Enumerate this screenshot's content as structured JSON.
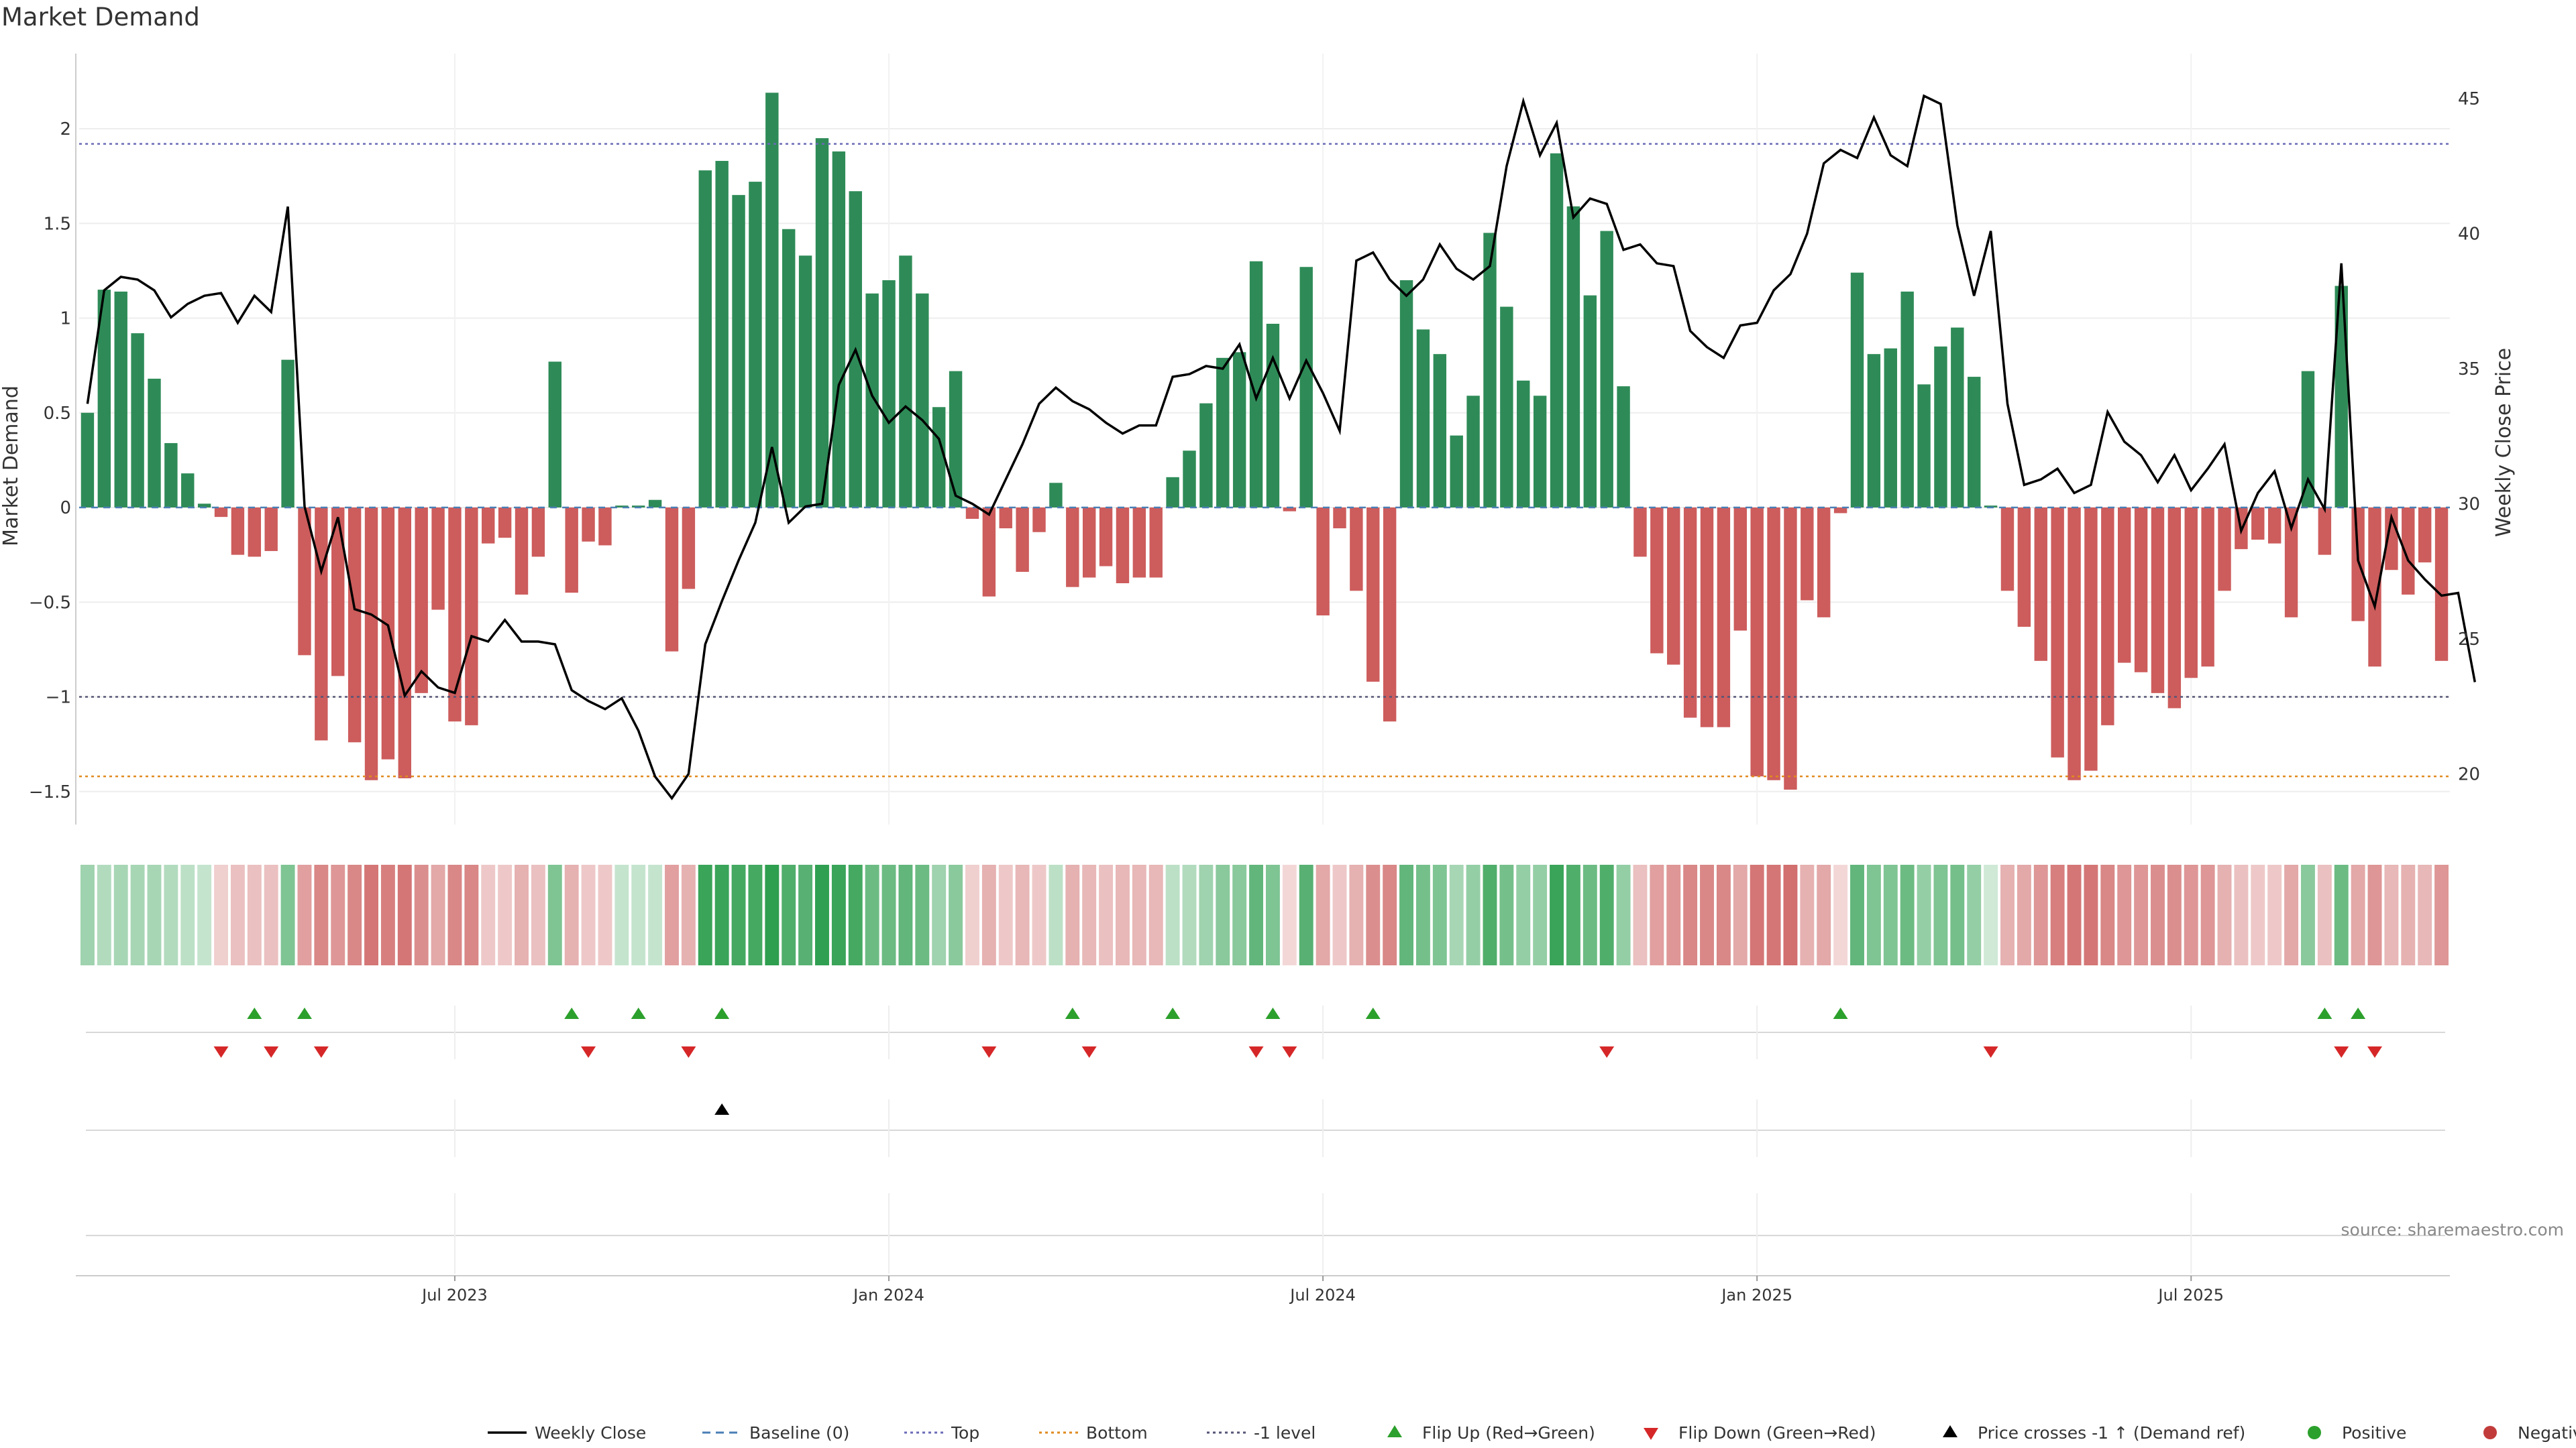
{
  "chart_data": {
    "type": "bar+line",
    "title": "Market Demand",
    "ylabel_left": "Market Demand",
    "ylabel_right": "Weekly Close Price",
    "ylim_left": [
      -1.7,
      2.4
    ],
    "ylim_right": [
      18,
      48
    ],
    "left_ticks": [
      2,
      1.5,
      1,
      0.5,
      0,
      -0.5,
      -1,
      -1.5
    ],
    "left_tick_labels": [
      "2",
      "1.5",
      "1",
      "0.5",
      "0",
      "−0.5",
      "−1",
      "−1.5"
    ],
    "right_ticks": [
      45,
      40,
      35,
      30,
      25,
      20
    ],
    "right_tick_labels": [
      "45",
      "40",
      "35",
      "30",
      "25",
      "20"
    ],
    "x_ticks": [
      {
        "label": "Jul 2023",
        "week": 22
      },
      {
        "label": "Jan 2024",
        "week": 48
      },
      {
        "label": "Jul 2024",
        "week": 74
      },
      {
        "label": "Jan 2025",
        "week": 100
      },
      {
        "label": "Jul 2025",
        "week": 126
      }
    ],
    "reference_lines": {
      "top": 1.92,
      "minus_one": -1.0,
      "bottom": -1.42,
      "baseline": 0
    },
    "demand": [
      0.5,
      1.15,
      1.14,
      0.92,
      0.68,
      0.34,
      0.18,
      0.02,
      -0.05,
      -0.25,
      -0.26,
      -0.23,
      0.78,
      -0.78,
      -1.23,
      -0.89,
      -1.24,
      -1.44,
      -1.33,
      -1.43,
      -0.98,
      -0.54,
      -1.13,
      -1.15,
      -0.19,
      -0.16,
      -0.46,
      -0.26,
      0.77,
      -0.45,
      -0.18,
      -0.2,
      0.01,
      0.01,
      0.04,
      -0.76,
      -0.43,
      1.78,
      1.83,
      1.65,
      1.72,
      2.19,
      1.47,
      1.33,
      1.95,
      1.88,
      1.67,
      1.13,
      1.2,
      1.33,
      1.13,
      0.53,
      0.72,
      -0.06,
      -0.47,
      -0.11,
      -0.34,
      -0.13,
      0.13,
      -0.42,
      -0.37,
      -0.31,
      -0.4,
      -0.37,
      -0.37,
      0.16,
      0.3,
      0.55,
      0.79,
      0.82,
      1.3,
      0.97,
      -0.02,
      1.27,
      -0.57,
      -0.11,
      -0.44,
      -0.92,
      -1.13,
      1.2,
      0.94,
      0.81,
      0.38,
      0.59,
      1.45,
      1.06,
      0.67,
      0.59,
      1.87,
      1.59,
      1.12,
      1.46,
      0.64,
      -0.26,
      -0.77,
      -0.83,
      -1.11,
      -1.16,
      -1.16,
      -0.65,
      -1.42,
      -1.44,
      -1.49,
      -0.49,
      -0.58,
      -0.03,
      1.24,
      0.81,
      0.84,
      1.14,
      0.65,
      0.85,
      0.95,
      0.69,
      0.01,
      -0.44,
      -0.63,
      -0.81,
      -1.32,
      -1.44,
      -1.39,
      -1.15,
      -0.82,
      -0.87,
      -0.98,
      -1.06,
      -0.9,
      -0.84,
      -0.44,
      -0.22,
      -0.17,
      -0.19,
      -0.58,
      0.72,
      -0.25,
      1.17,
      -0.6,
      -0.84,
      -0.33,
      -0.46,
      -0.29,
      -0.81
    ],
    "weekly_close": [
      33.7,
      37.9,
      38.4,
      38.3,
      37.9,
      36.9,
      37.4,
      37.7,
      37.8,
      36.7,
      37.7,
      37.1,
      41,
      29.9,
      27.5,
      29.5,
      26.1,
      25.9,
      25.5,
      22.9,
      23.8,
      23.2,
      23,
      25.1,
      24.9,
      25.7,
      24.9,
      24.9,
      24.8,
      23.1,
      22.7,
      22.4,
      22.8,
      21.6,
      19.9,
      19.1,
      20,
      24.8,
      26.4,
      27.9,
      29.3,
      32.1,
      29.3,
      29.9,
      30,
      34.4,
      35.7,
      34,
      33,
      33.6,
      33.1,
      32.4,
      30.3,
      30,
      29.6,
      30.9,
      32.2,
      33.7,
      34.3,
      33.8,
      33.5,
      33,
      32.6,
      32.9,
      32.9,
      34.7,
      34.8,
      35.1,
      35,
      35.9,
      33.9,
      35.4,
      33.9,
      35.3,
      34.1,
      32.7,
      39,
      39.3,
      38.3,
      37.7,
      38.3,
      39.6,
      38.7,
      38.3,
      38.8,
      42.5,
      44.9,
      42.9,
      44.1,
      40.6,
      41.3,
      41.1,
      39.4,
      39.6,
      38.9,
      38.8,
      36.4,
      35.8,
      35.4,
      36.6,
      36.7,
      37.9,
      38.5,
      40,
      42.6,
      43.1,
      42.8,
      44.3,
      42.9,
      42.5,
      45.1,
      44.8,
      40.3,
      37.7,
      40.1,
      33.7,
      30.7,
      30.9,
      31.3,
      30.4,
      30.7,
      33.4,
      32.3,
      31.8,
      30.8,
      31.8,
      30.5,
      31.3,
      32.2,
      29,
      30.4,
      31.2,
      29.1,
      30.9,
      29.8,
      38.9,
      27.9,
      26.2,
      29.5,
      27.9,
      27.2,
      26.6,
      26.7,
      23.4
    ],
    "shading_intensity": [
      0.3,
      0.2,
      0.25,
      0.25,
      0.25,
      0.2,
      0.15,
      0.1,
      0.1,
      0.2,
      0.2,
      0.2,
      0.45,
      0.4,
      0.55,
      0.45,
      0.55,
      0.65,
      0.6,
      0.65,
      0.5,
      0.35,
      0.55,
      0.55,
      0.15,
      0.15,
      0.3,
      0.2,
      0.45,
      0.3,
      0.15,
      0.15,
      0.1,
      0.1,
      0.1,
      0.4,
      0.3,
      0.8,
      0.8,
      0.75,
      0.75,
      0.9,
      0.7,
      0.65,
      0.85,
      0.8,
      0.75,
      0.55,
      0.55,
      0.6,
      0.55,
      0.3,
      0.4,
      0.1,
      0.3,
      0.15,
      0.25,
      0.15,
      0.15,
      0.3,
      0.25,
      0.2,
      0.25,
      0.25,
      0.25,
      0.15,
      0.2,
      0.3,
      0.4,
      0.4,
      0.6,
      0.45,
      0.05,
      0.65,
      0.35,
      0.15,
      0.3,
      0.5,
      0.55,
      0.6,
      0.5,
      0.45,
      0.25,
      0.35,
      0.7,
      0.5,
      0.35,
      0.35,
      0.8,
      0.7,
      0.55,
      0.7,
      0.35,
      0.2,
      0.4,
      0.45,
      0.55,
      0.55,
      0.55,
      0.35,
      0.65,
      0.65,
      0.7,
      0.3,
      0.35,
      0.05,
      0.6,
      0.45,
      0.45,
      0.55,
      0.35,
      0.45,
      0.5,
      0.35,
      0.05,
      0.3,
      0.35,
      0.45,
      0.6,
      0.65,
      0.65,
      0.55,
      0.45,
      0.45,
      0.5,
      0.5,
      0.45,
      0.45,
      0.3,
      0.2,
      0.15,
      0.15,
      0.35,
      0.4,
      0.2,
      0.55,
      0.35,
      0.45,
      0.25,
      0.3,
      0.25,
      0.45
    ],
    "flip_up_weeks": [
      10,
      13,
      29,
      33,
      38,
      59,
      65,
      71,
      77,
      105,
      134,
      136
    ],
    "flip_down_weeks": [
      8,
      11,
      14,
      30,
      36,
      54,
      60,
      70,
      72,
      91,
      114,
      135,
      137
    ],
    "price_cross_up_weeks": [
      38
    ],
    "colors": {
      "positive_bar": "#2e8b57",
      "negative_bar": "#cd5c5c",
      "close_line": "#000000",
      "baseline": "#4a7fb5",
      "top": "#6b6bb8",
      "bottom": "#e08a1e",
      "minus_one": "#555577",
      "flip_up": "#2ca02c",
      "flip_down": "#d62728",
      "cross": "#000000",
      "positive_dot": "#2ca02c",
      "negative_dot": "#c23b3b"
    },
    "legend": [
      {
        "label": "Weekly Close",
        "kind": "line"
      },
      {
        "label": "Baseline (0)",
        "kind": "dash-baseline"
      },
      {
        "label": "Top",
        "kind": "dot-top"
      },
      {
        "label": "Bottom",
        "kind": "dot-bottom"
      },
      {
        "label": "-1 level",
        "kind": "dot-minus"
      },
      {
        "label": "Flip Up (Red→Green)",
        "kind": "tri-up"
      },
      {
        "label": "Flip Down (Green→Red)",
        "kind": "tri-down"
      },
      {
        "label": "Price crosses -1 ↑ (Demand ref)",
        "kind": "tri-cross"
      },
      {
        "label": "Positive",
        "kind": "dot-pos"
      },
      {
        "label": "Negative",
        "kind": "dot-neg"
      }
    ],
    "source": "source: sharemaestro.com"
  }
}
